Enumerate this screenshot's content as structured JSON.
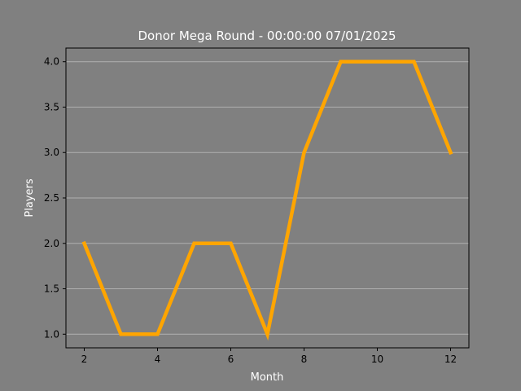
{
  "chart_data": {
    "type": "line",
    "title": "Donor Mega Round - 00:00:00 07/01/2025",
    "xlabel": "Month",
    "ylabel": "Players",
    "xlim": [
      1.5,
      12.5
    ],
    "ylim": [
      0.85,
      4.15
    ],
    "x_ticks": [
      2,
      4,
      6,
      8,
      10,
      12
    ],
    "x_tick_labels": [
      "2",
      "4",
      "6",
      "8",
      "10",
      "12"
    ],
    "y_ticks": [
      1.0,
      1.5,
      2.0,
      2.5,
      3.0,
      3.5,
      4.0
    ],
    "y_tick_labels": [
      "1.0",
      "1.5",
      "2.0",
      "2.5",
      "3.0",
      "3.5",
      "4.0"
    ],
    "grid": "horizontal",
    "legend": "none",
    "series": [
      {
        "color": "#ffa500",
        "x": [
          2,
          3,
          4,
          5,
          6,
          7,
          8,
          9,
          10,
          11,
          12
        ],
        "y": [
          2,
          1,
          1,
          2,
          2,
          1,
          3,
          4,
          4,
          4,
          3
        ]
      }
    ],
    "colors": {
      "background": "#808080",
      "plot_background": "#808080",
      "grid": "#b0b0b0",
      "axes": "#000000",
      "text": "#ffffff"
    }
  }
}
